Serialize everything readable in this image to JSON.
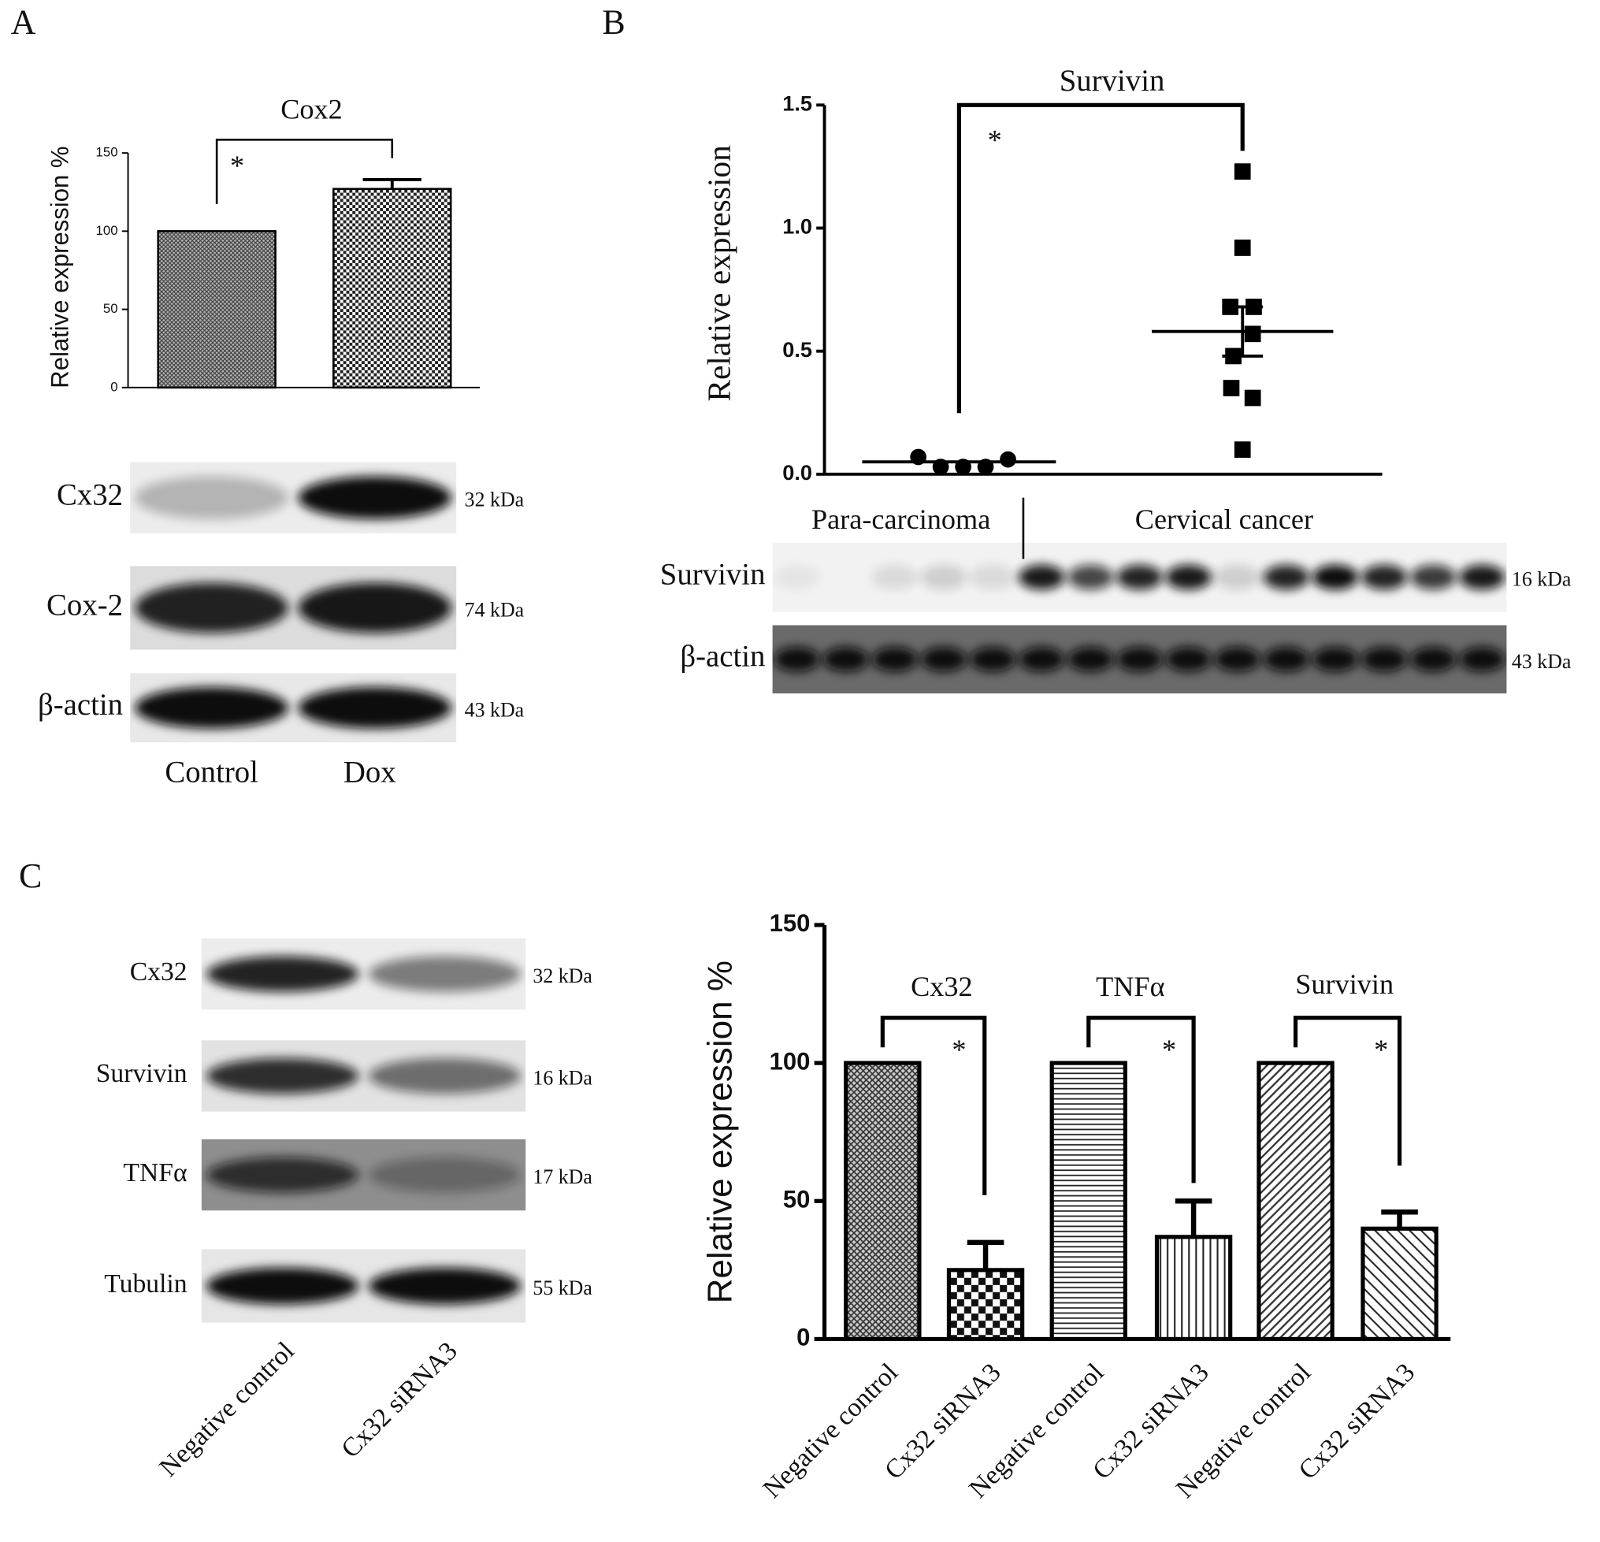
{
  "panel_labels": [
    "A",
    "B",
    "C"
  ],
  "chart_data": [
    {
      "type": "bar",
      "title": "Cox2",
      "ylabel": "Relative expression %",
      "categories": [
        "Control",
        "Dox"
      ],
      "values": [
        100,
        127
      ],
      "errors": [
        0,
        6
      ],
      "ylim": [
        0,
        150
      ],
      "yticks": [
        0,
        50,
        100,
        150
      ],
      "annotations": [
        "*"
      ]
    },
    {
      "type": "scatter",
      "title": "Survivin",
      "ylabel": "Relative expression",
      "groups": [
        {
          "name": "Para-carcinoma",
          "values": [
            0.07,
            0.03,
            0.03,
            0.03,
            0.06
          ],
          "mean": 0.05
        },
        {
          "name": "Cervical cancer",
          "values": [
            1.23,
            0.92,
            0.68,
            0.68,
            0.57,
            0.48,
            0.35,
            0.31,
            0.1
          ],
          "mean": 0.58,
          "sem": 0.1
        }
      ],
      "ylim": [
        0,
        1.5
      ],
      "yticks": [
        {
          "value": 0,
          "label": "0.0"
        },
        {
          "value": 0.5,
          "label": "0.5"
        },
        {
          "value": 1,
          "label": "1.0"
        },
        {
          "value": 1.5,
          "label": "1.5"
        }
      ],
      "annotations": [
        "*"
      ]
    },
    {
      "type": "bar",
      "ylabel": "Relative expression %",
      "categories": [
        "Negative control",
        "Cx32 siRNA3",
        "Negative control",
        "Cx32 siRNA3",
        "Negative control",
        "Cx32 siRNA3"
      ],
      "values": [
        100,
        25,
        100,
        37,
        100,
        40
      ],
      "errors": [
        0,
        10,
        0,
        13,
        0,
        6
      ],
      "ylim": [
        0,
        150
      ],
      "yticks": [
        0,
        50,
        100,
        150
      ],
      "group_labels": [
        "Cx32",
        "TNFα",
        "Survivin"
      ],
      "annotations": [
        "*",
        "*",
        "*"
      ]
    }
  ],
  "blots": [
    {
      "rows": [
        {
          "label": "Cx32",
          "size": "32 kDa"
        },
        {
          "label": "Cox-2",
          "size": "74 kDa"
        },
        {
          "label": "β-actin",
          "size": "43 kDa"
        }
      ]
    },
    {
      "rows": [
        {
          "label": "Survivin",
          "size": "16 kDa"
        },
        {
          "label": "β-actin",
          "size": "43 kDa"
        }
      ]
    },
    {
      "rows": [
        {
          "label": "Cx32",
          "size": "32 kDa"
        },
        {
          "label": "Survivin",
          "size": "16 kDa"
        },
        {
          "label": "TNFα",
          "size": "17 kDa"
        },
        {
          "label": "Tubulin",
          "size": "55 kDa"
        }
      ],
      "lanes": [
        "Negative control",
        "Cx32 siRNA3"
      ]
    }
  ]
}
